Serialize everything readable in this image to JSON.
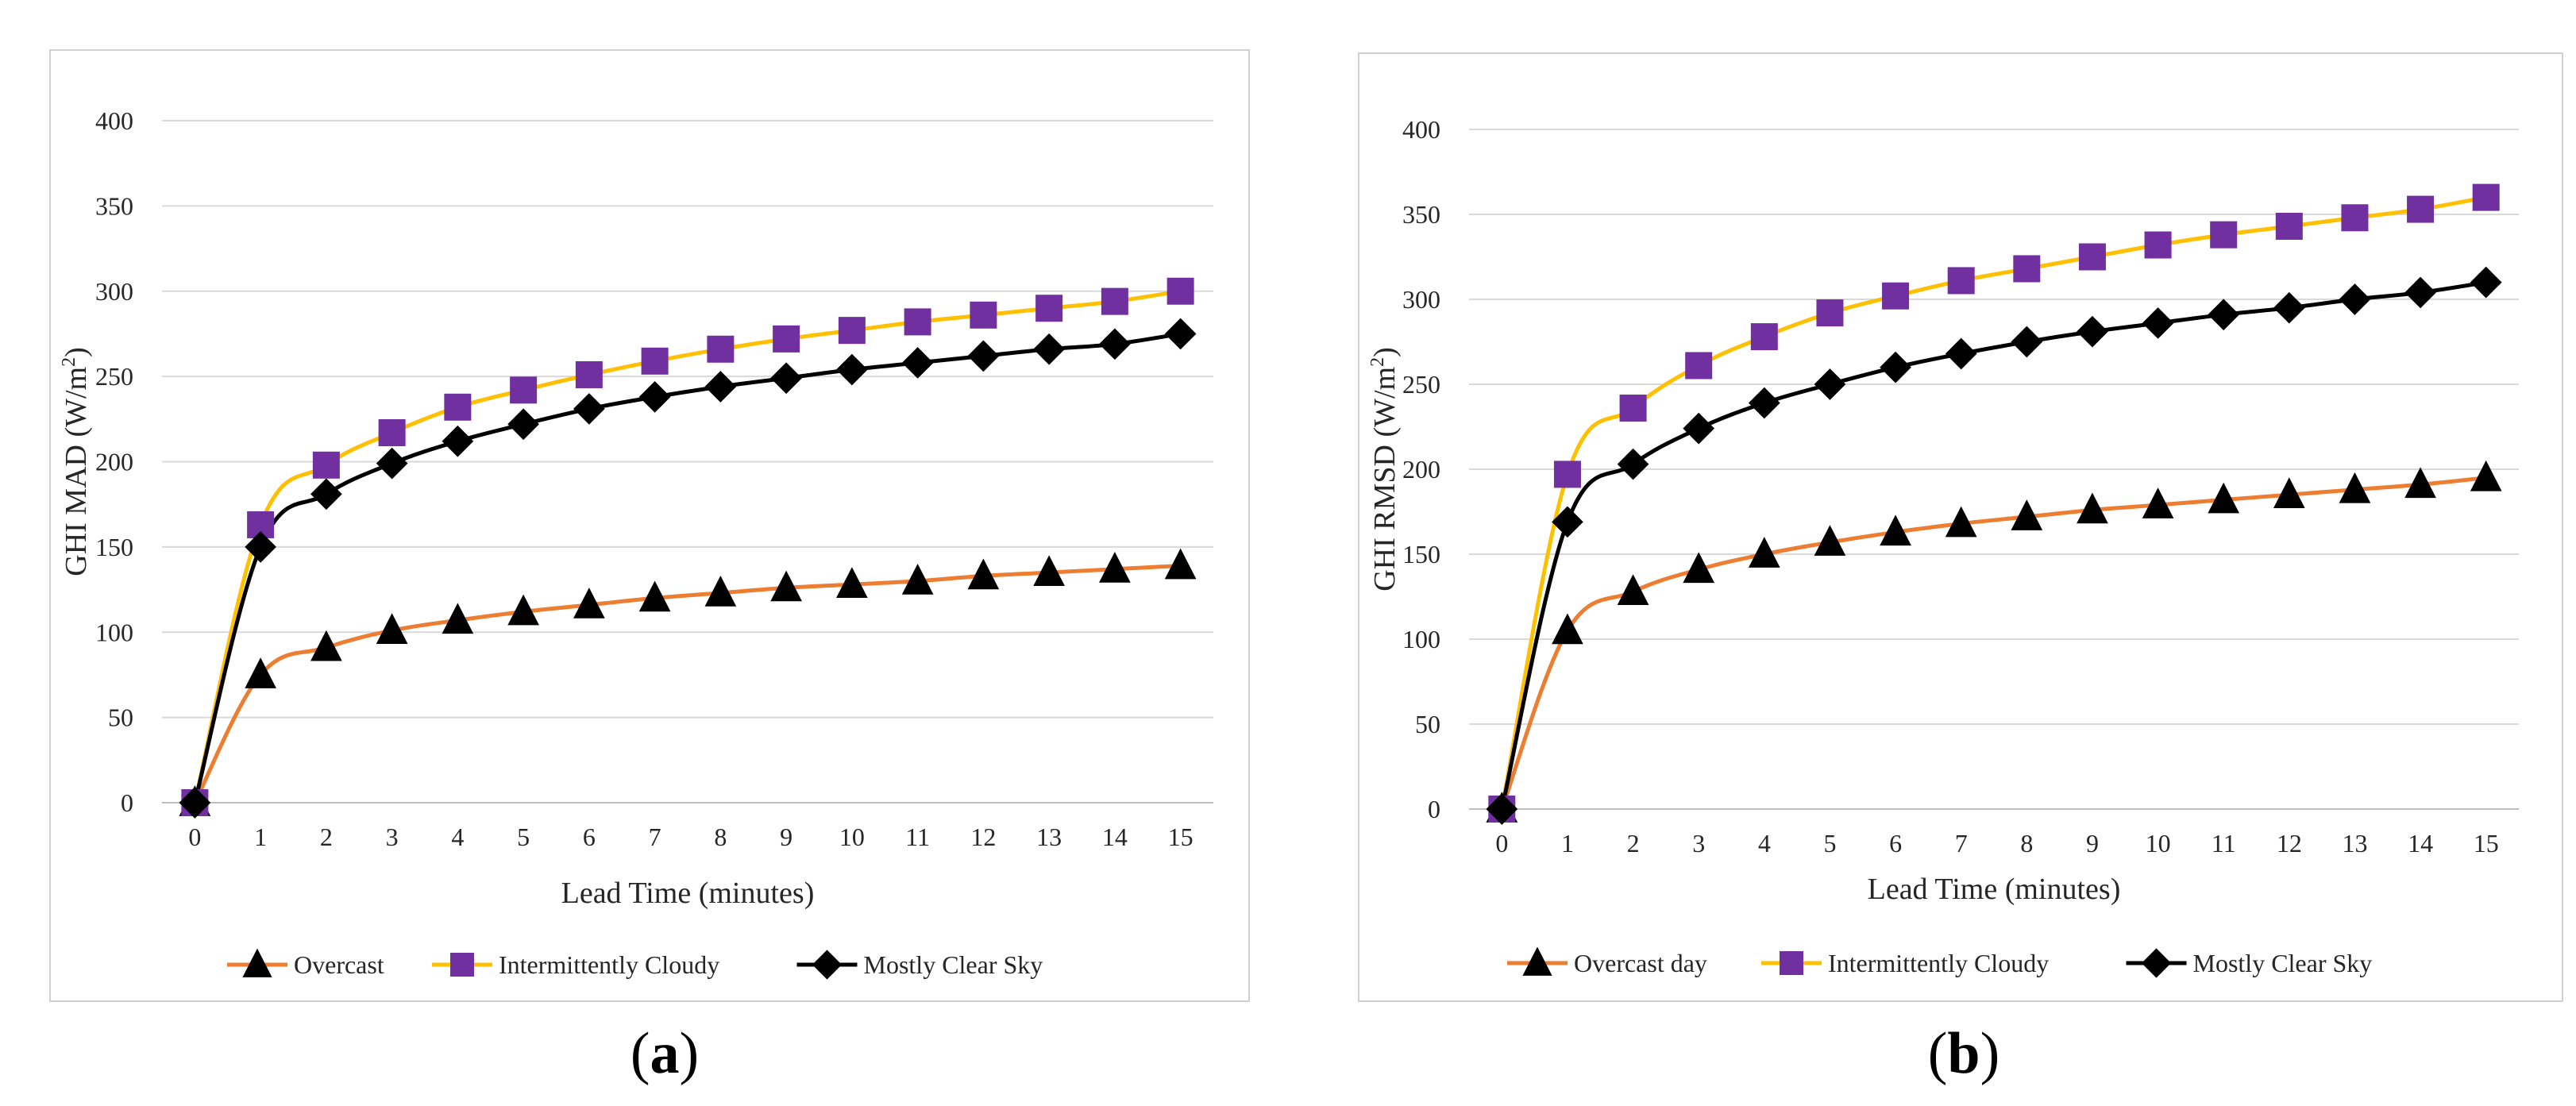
{
  "chart_data": [
    {
      "type": "line",
      "panel_label": "a",
      "ylabel": "GHI MAD (W/m",
      "ylabel_sup": "2",
      "ylabel_close": ")",
      "xlabel": "Lead Time (minutes)",
      "ylim": [
        0,
        400
      ],
      "yticks": [
        "0",
        "50",
        "100",
        "150",
        "200",
        "250",
        "300",
        "350",
        "400"
      ],
      "categories": [
        "0",
        "1",
        "2",
        "3",
        "4",
        "5",
        "6",
        "7",
        "8",
        "9",
        "10",
        "11",
        "12",
        "13",
        "14",
        "15"
      ],
      "grid": true,
      "legend_position": "bottom",
      "series": [
        {
          "name": "Overcast",
          "line_color": "#ED7D31",
          "marker": "triangle",
          "marker_color": "#000000",
          "values": [
            0,
            75,
            91,
            101,
            107,
            112,
            116,
            120,
            123,
            126,
            128,
            130,
            133,
            135,
            137,
            139
          ]
        },
        {
          "name": "Intermittently Cloudy",
          "line_color": "#FFC000",
          "marker": "square",
          "marker_color": "#7030A0",
          "values": [
            0,
            163,
            198,
            217,
            232,
            242,
            251,
            259,
            266,
            272,
            277,
            282,
            286,
            290,
            294,
            300
          ]
        },
        {
          "name": "Mostly Clear Sky",
          "line_color": "#000000",
          "marker": "diamond",
          "marker_color": "#000000",
          "values": [
            0,
            150,
            181,
            199,
            212,
            222,
            231,
            238,
            244,
            249,
            254,
            258,
            262,
            266,
            269,
            275
          ]
        }
      ]
    },
    {
      "type": "line",
      "panel_label": "b",
      "ylabel": "GHI RMSD (W/m",
      "ylabel_sup": "2",
      "ylabel_close": ")",
      "xlabel": "Lead Time (minutes)",
      "ylim": [
        0,
        400
      ],
      "yticks": [
        "0",
        "50",
        "100",
        "150",
        "200",
        "250",
        "300",
        "350",
        "400"
      ],
      "categories": [
        "0",
        "1",
        "2",
        "3",
        "4",
        "5",
        "6",
        "7",
        "8",
        "9",
        "10",
        "11",
        "12",
        "13",
        "14",
        "15"
      ],
      "grid": true,
      "legend_position": "bottom",
      "series": [
        {
          "name": "Overcast day",
          "line_color": "#ED7D31",
          "marker": "triangle",
          "marker_color": "#000000",
          "values": [
            0,
            105,
            128,
            141,
            150,
            157,
            163,
            168,
            172,
            176,
            179,
            182,
            185,
            188,
            191,
            195
          ]
        },
        {
          "name": "Intermittently Cloudy",
          "line_color": "#FFC000",
          "marker": "square",
          "marker_color": "#7030A0",
          "values": [
            0,
            197,
            236,
            261,
            278,
            292,
            302,
            311,
            318,
            325,
            332,
            338,
            343,
            348,
            353,
            360
          ]
        },
        {
          "name": "Mostly Clear Sky",
          "line_color": "#000000",
          "marker": "diamond",
          "marker_color": "#000000",
          "values": [
            0,
            169,
            203,
            224,
            239,
            250,
            260,
            268,
            275,
            281,
            286,
            291,
            295,
            300,
            304,
            310
          ]
        }
      ]
    }
  ],
  "captions": {
    "a": "a",
    "b": "b"
  }
}
